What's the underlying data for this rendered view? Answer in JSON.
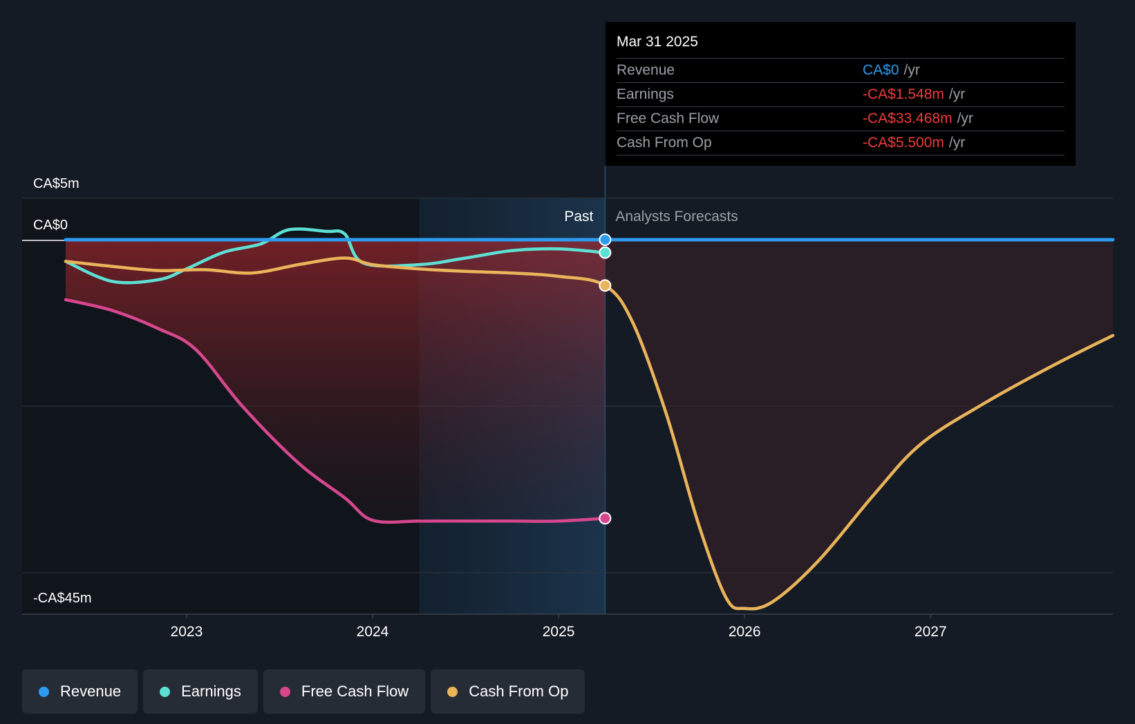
{
  "tooltip": {
    "date": "Mar 31 2025",
    "rows": [
      {
        "label": "Revenue",
        "value": "CA$0",
        "unit": "/yr",
        "color": "#2d9cf0"
      },
      {
        "label": "Earnings",
        "value": "-CA$1.548m",
        "unit": "/yr",
        "color": "#ee3c3c"
      },
      {
        "label": "Free Cash Flow",
        "value": "-CA$33.468m",
        "unit": "/yr",
        "color": "#ee3c3c"
      },
      {
        "label": "Cash From Op",
        "value": "-CA$5.500m",
        "unit": "/yr",
        "color": "#ee3c3c"
      }
    ]
  },
  "chart_data": {
    "type": "line",
    "y_tick_labels": [
      {
        "label": "CA$5m",
        "value": 5
      },
      {
        "label": "CA$0",
        "value": 0
      },
      {
        "label": "-CA$45m",
        "value": -45
      }
    ],
    "ylim": [
      -45,
      5
    ],
    "xlim": [
      2022.35,
      2027.98
    ],
    "x_ticks": [
      2023,
      2024,
      2025,
      2026,
      2027
    ],
    "past_label": "Past",
    "forecast_label": "Analysts Forecasts",
    "divider_x": 2025.25,
    "shade_start_x": 2024.25,
    "series": [
      {
        "name": "Revenue",
        "color": "#2d9cf0",
        "points": [
          [
            2022.35,
            0
          ],
          [
            2025.25,
            0
          ],
          [
            2027.98,
            0
          ]
        ]
      },
      {
        "name": "Earnings",
        "color": "#5de0d3",
        "points": [
          [
            2022.35,
            -2.6
          ],
          [
            2022.6,
            -5.0
          ],
          [
            2022.85,
            -4.8
          ],
          [
            2023.0,
            -3.5
          ],
          [
            2023.2,
            -1.5
          ],
          [
            2023.4,
            -0.5
          ],
          [
            2023.55,
            1.2
          ],
          [
            2023.75,
            1.0
          ],
          [
            2023.85,
            0.7
          ],
          [
            2023.95,
            -2.8
          ],
          [
            2024.25,
            -3.0
          ],
          [
            2024.5,
            -2.2
          ],
          [
            2024.75,
            -1.3
          ],
          [
            2025.0,
            -1.1
          ],
          [
            2025.25,
            -1.548
          ]
        ]
      },
      {
        "name": "Free Cash Flow",
        "color": "#d6478e",
        "points": [
          [
            2022.35,
            -7.2
          ],
          [
            2022.6,
            -8.5
          ],
          [
            2022.85,
            -10.7
          ],
          [
            2023.05,
            -13.2
          ],
          [
            2023.3,
            -20.0
          ],
          [
            2023.6,
            -26.8
          ],
          [
            2023.85,
            -31.0
          ],
          [
            2024.0,
            -33.7
          ],
          [
            2024.25,
            -33.8
          ],
          [
            2024.5,
            -33.8
          ],
          [
            2024.75,
            -33.8
          ],
          [
            2025.0,
            -33.8
          ],
          [
            2025.25,
            -33.468
          ]
        ]
      },
      {
        "name": "Cash From Op",
        "color": "#e9b45a",
        "points": [
          [
            2022.35,
            -2.6
          ],
          [
            2022.6,
            -3.2
          ],
          [
            2022.85,
            -3.7
          ],
          [
            2023.1,
            -3.6
          ],
          [
            2023.35,
            -4.0
          ],
          [
            2023.6,
            -3.0
          ],
          [
            2023.85,
            -2.2
          ],
          [
            2024.0,
            -3.0
          ],
          [
            2024.25,
            -3.5
          ],
          [
            2024.5,
            -3.8
          ],
          [
            2024.75,
            -4.0
          ],
          [
            2025.0,
            -4.4
          ],
          [
            2025.25,
            -5.5
          ],
          [
            2025.4,
            -10.0
          ],
          [
            2025.58,
            -21.0
          ],
          [
            2025.75,
            -34.0
          ],
          [
            2025.9,
            -43.0
          ],
          [
            2026.0,
            -44.3
          ],
          [
            2026.15,
            -43.5
          ],
          [
            2026.4,
            -38.5
          ],
          [
            2026.7,
            -30.5
          ],
          [
            2026.95,
            -24.5
          ],
          [
            2027.3,
            -19.5
          ],
          [
            2027.65,
            -15.2
          ],
          [
            2027.98,
            -11.5
          ]
        ]
      }
    ]
  },
  "legend": [
    {
      "name": "Revenue",
      "color": "#2d9cf0"
    },
    {
      "name": "Earnings",
      "color": "#5de0d3"
    },
    {
      "name": "Free Cash Flow",
      "color": "#d6478e"
    },
    {
      "name": "Cash From Op",
      "color": "#e9b45a"
    }
  ]
}
